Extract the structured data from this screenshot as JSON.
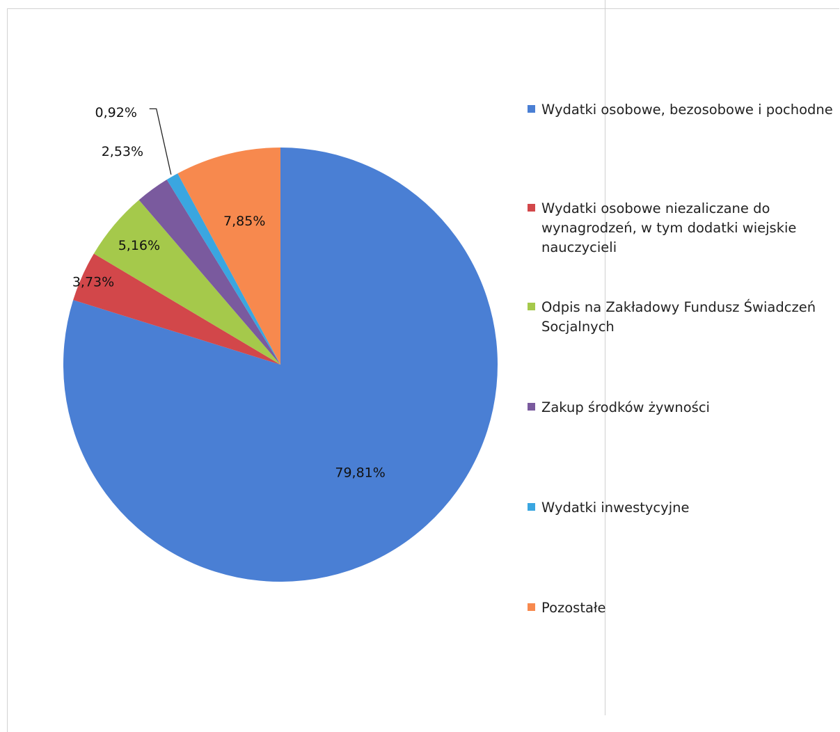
{
  "chart_data": {
    "type": "pie",
    "title": "",
    "start_angle_deg": 0,
    "direction": "clockwise",
    "legend_position": "right",
    "slices": [
      {
        "name": "Wydatki osobowe, bezosobowe i pochodne",
        "value": 79.81,
        "label": "79,81%",
        "color": "#4a7fd4"
      },
      {
        "name": "Wydatki osobowe niezaliczane do wynagrodzeń, w tym dodatki wiejskie nauczycieli",
        "value": 3.73,
        "label": "3,73%",
        "color": "#d2474a"
      },
      {
        "name": "Odpis na Zakładowy Fundusz Świadczeń Socjalnych",
        "value": 5.16,
        "label": "5,16%",
        "color": "#a5c94b"
      },
      {
        "name": "Zakup środków żywności",
        "value": 2.53,
        "label": "2,53%",
        "color": "#7a5a9e"
      },
      {
        "name": "Wydatki inwestycyjne",
        "value": 0.92,
        "label": "0,92%",
        "color": "#3aa6e0"
      },
      {
        "name": "Pozostałe",
        "value": 7.85,
        "label": "7,85%",
        "color": "#f7894e"
      }
    ]
  }
}
